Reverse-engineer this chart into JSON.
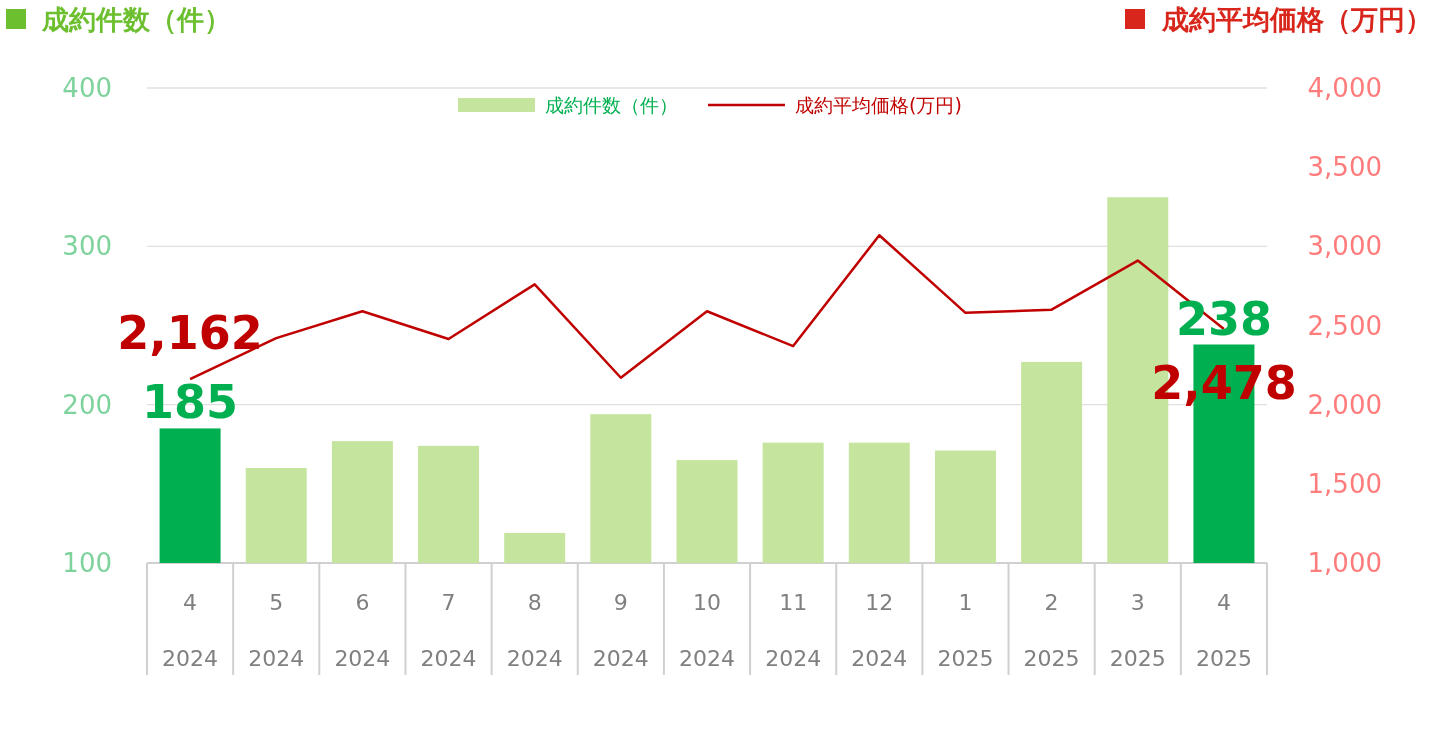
{
  "chart_data": {
    "type": "bar",
    "ylabel": "成約件数（件）",
    "y2label": "成約平均価格（万円）",
    "categories": [
      "4\n2024",
      "5\n2024",
      "6\n2024",
      "7\n2024",
      "8\n2024",
      "9\n2024",
      "10\n2024",
      "11\n2024",
      "12\n2024",
      "1\n2025",
      "2\n2025",
      "3\n2025",
      "4\n2025"
    ],
    "ylim": [
      100,
      400
    ],
    "yticks": [
      100,
      200,
      300,
      400
    ],
    "y2lim": [
      1000,
      4000
    ],
    "y2ticks": [
      {
        "value": 1000,
        "label": "1,000"
      },
      {
        "value": 1500,
        "label": "1,500"
      },
      {
        "value": 2000,
        "label": "2,000"
      },
      {
        "value": 2500,
        "label": "2,500"
      },
      {
        "value": 3000,
        "label": "3,000"
      },
      {
        "value": 3500,
        "label": "3,500"
      },
      {
        "value": 4000,
        "label": "4,000"
      }
    ],
    "grid": "y",
    "legend": "top",
    "series": [
      {
        "name": "成約件数（件）",
        "color": "#c5e59e",
        "colors": [
          "#00b050",
          "#c5e59e",
          "#c5e59e",
          "#c5e59e",
          "#c5e59e",
          "#c5e59e",
          "#c5e59e",
          "#c5e59e",
          "#c5e59e",
          "#c5e59e",
          "#c5e59e",
          "#c5e59e",
          "#00b050"
        ],
        "values": [
          185,
          160,
          177,
          174,
          119,
          194,
          165,
          176,
          176,
          171,
          227,
          331,
          238
        ],
        "value_labels": [
          "185",
          null,
          null,
          null,
          null,
          null,
          null,
          null,
          null,
          null,
          null,
          null,
          "238"
        ]
      },
      {
        "name": "成約平均価格(万円)",
        "type": "line",
        "axis": "y2",
        "color": "#c00000",
        "values": [
          2162,
          2420,
          2590,
          2415,
          2760,
          2170,
          2590,
          2370,
          3070,
          2580,
          2600,
          2910,
          2478
        ],
        "value_labels": [
          "2,162",
          null,
          null,
          null,
          null,
          null,
          null,
          null,
          null,
          null,
          null,
          null,
          "2,478"
        ]
      }
    ]
  }
}
